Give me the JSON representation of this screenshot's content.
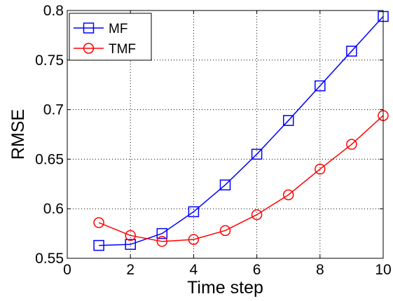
{
  "chart_data": {
    "type": "line",
    "title": "",
    "xlabel": "Time step",
    "ylabel": "RMSE",
    "xlim": [
      0,
      10
    ],
    "ylim": [
      0.55,
      0.8
    ],
    "xticks": [
      0,
      2,
      4,
      6,
      8,
      10
    ],
    "xtick_labels": [
      "0",
      "2",
      "4",
      "6",
      "8",
      "10"
    ],
    "yticks": [
      0.55,
      0.6,
      0.65,
      0.7,
      0.75,
      0.8
    ],
    "ytick_labels": [
      "0.55",
      "0.6",
      "0.65",
      "0.7",
      "0.75",
      "0.8"
    ],
    "grid": true,
    "legend_position": "top-left",
    "x": [
      1,
      2,
      3,
      4,
      5,
      6,
      7,
      8,
      9,
      10
    ],
    "series": [
      {
        "name": "MF",
        "color": "#0000ff",
        "marker": "square",
        "values": [
          0.563,
          0.564,
          0.575,
          0.597,
          0.624,
          0.655,
          0.689,
          0.724,
          0.759,
          0.794
        ]
      },
      {
        "name": "TMF",
        "color": "#ff0000",
        "marker": "circle",
        "values": [
          0.586,
          0.573,
          0.567,
          0.569,
          0.578,
          0.594,
          0.614,
          0.64,
          0.665,
          0.694
        ]
      }
    ]
  }
}
